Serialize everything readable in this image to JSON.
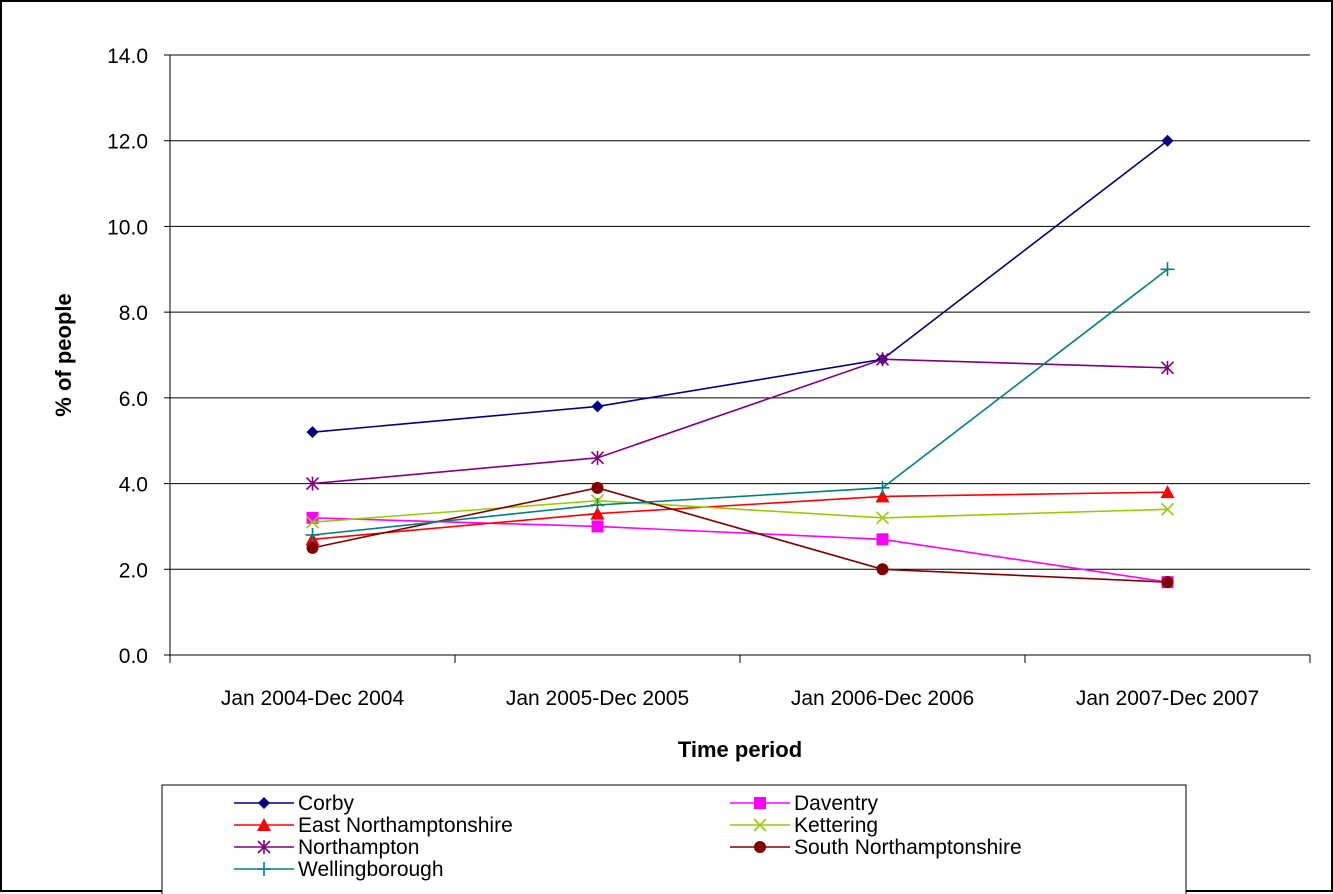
{
  "chart_data": {
    "type": "line",
    "title": "",
    "xlabel": "Time period",
    "ylabel": "% of people",
    "categories": [
      "Jan 2004-Dec 2004",
      "Jan 2005-Dec 2005",
      "Jan 2006-Dec 2006",
      "Jan 2007-Dec 2007"
    ],
    "ylim": [
      0,
      14
    ],
    "yticks": [
      0,
      2,
      4,
      6,
      8,
      10,
      12,
      14
    ],
    "ytick_labels": [
      "0.0",
      "2.0",
      "4.0",
      "6.0",
      "8.0",
      "10.0",
      "12.0",
      "14.0"
    ],
    "grid": "horizontal",
    "legend_position": "bottom",
    "series": [
      {
        "name": "Corby",
        "values": [
          5.2,
          5.8,
          6.9,
          12.0
        ],
        "color": "#000080",
        "marker": "diamond"
      },
      {
        "name": "Daventry",
        "values": [
          3.2,
          3.0,
          2.7,
          1.7
        ],
        "color": "#FF00FF",
        "marker": "square"
      },
      {
        "name": "East Northamptonshire",
        "values": [
          2.7,
          3.3,
          3.7,
          3.8
        ],
        "color": "#FF0000",
        "marker": "triangle"
      },
      {
        "name": "Kettering",
        "values": [
          3.1,
          3.6,
          3.2,
          3.4
        ],
        "color": "#99CC00",
        "marker": "x"
      },
      {
        "name": "Northampton",
        "values": [
          4.0,
          4.6,
          6.9,
          6.7
        ],
        "color": "#800080",
        "marker": "star"
      },
      {
        "name": "South Northamptonshire",
        "values": [
          2.5,
          3.9,
          2.0,
          1.7
        ],
        "color": "#800000",
        "marker": "circle"
      },
      {
        "name": "Wellingborough",
        "values": [
          2.8,
          3.5,
          3.9,
          9.0
        ],
        "color": "#008080",
        "marker": "plus"
      }
    ]
  }
}
